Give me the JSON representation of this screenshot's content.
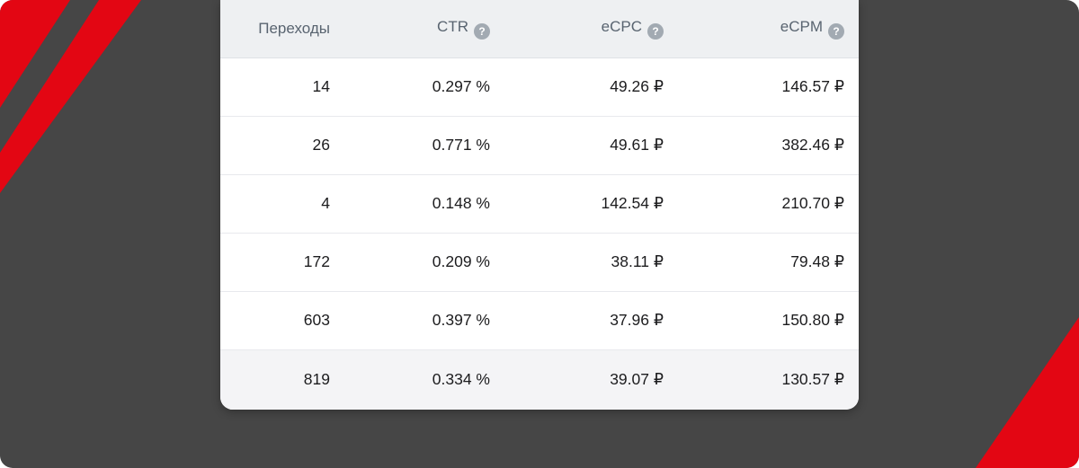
{
  "theme": {
    "background": "#464646",
    "accent_red": "#e30613",
    "card_bg": "#ffffff",
    "header_bg": "#eef0f2",
    "summary_row_bg": "#f4f4f6",
    "header_text": "#596470",
    "cell_text": "#1c1c1e",
    "help_icon_bg": "#a2aab2"
  },
  "icons": {
    "help_glyph": "?"
  },
  "table": {
    "columns": [
      {
        "label": "Переходы",
        "has_help_icon": false
      },
      {
        "label": "CTR",
        "has_help_icon": true
      },
      {
        "label": "eCPC",
        "has_help_icon": true
      },
      {
        "label": "eCPM",
        "has_help_icon": true
      }
    ],
    "rows": [
      [
        "14",
        "0.297 %",
        "49.26 ₽",
        "146.57 ₽"
      ],
      [
        "26",
        "0.771 %",
        "49.61 ₽",
        "382.46 ₽"
      ],
      [
        "4",
        "0.148 %",
        "142.54 ₽",
        "210.70 ₽"
      ],
      [
        "172",
        "0.209 %",
        "38.11 ₽",
        "79.48 ₽"
      ],
      [
        "603",
        "0.397 %",
        "37.96 ₽",
        "150.80 ₽"
      ]
    ],
    "summary_row": [
      "819",
      "0.334 %",
      "39.07 ₽",
      "130.57 ₽"
    ]
  }
}
